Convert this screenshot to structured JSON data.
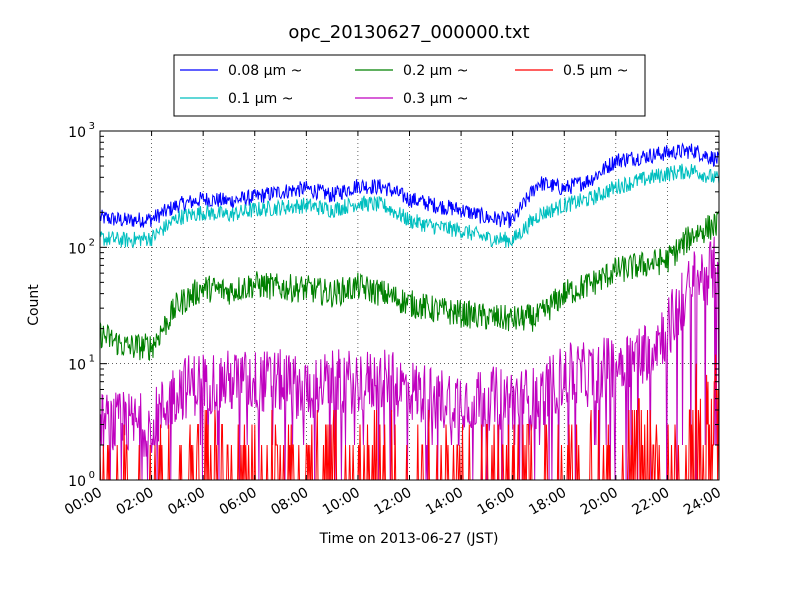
{
  "chart_data": {
    "type": "line",
    "title": "opc_20130627_000000.txt",
    "xlabel": "Time on 2013-06-27 (JST)",
    "ylabel": "Count",
    "yscale": "log",
    "ylim": [
      1,
      1000
    ],
    "xlim": [
      "00:00",
      "24:00"
    ],
    "x_ticks": [
      "00:00",
      "02:00",
      "04:00",
      "06:00",
      "08:00",
      "10:00",
      "12:00",
      "14:00",
      "16:00",
      "18:00",
      "20:00",
      "22:00",
      "24:00"
    ],
    "y_ticks": [
      {
        "value": 1,
        "base": "10",
        "exp": "0"
      },
      {
        "value": 10,
        "base": "10",
        "exp": "1"
      },
      {
        "value": 100,
        "base": "10",
        "exp": "2"
      },
      {
        "value": 1000,
        "base": "10",
        "exp": "3"
      }
    ],
    "grid": true,
    "legend_position": "above plot",
    "x_hours": [
      0,
      1,
      2,
      3,
      4,
      5,
      6,
      7,
      8,
      9,
      10,
      11,
      12,
      13,
      14,
      15,
      16,
      17,
      18,
      19,
      20,
      21,
      22,
      23,
      24
    ],
    "series": [
      {
        "name": "0.08 μm ~",
        "color": "#0000ff",
        "values": [
          180,
          170,
          175,
          230,
          260,
          250,
          270,
          300,
          320,
          280,
          340,
          330,
          260,
          230,
          210,
          180,
          170,
          360,
          320,
          380,
          560,
          600,
          650,
          680,
          560
        ]
      },
      {
        "name": "0.1 μm ~",
        "color": "#00bfbf",
        "values": [
          120,
          115,
          120,
          180,
          200,
          190,
          210,
          220,
          230,
          210,
          240,
          230,
          170,
          150,
          140,
          120,
          115,
          190,
          230,
          260,
          330,
          380,
          430,
          460,
          380
        ]
      },
      {
        "name": "0.2 μm ~",
        "color": "#008000",
        "values": [
          18,
          14,
          14,
          32,
          45,
          42,
          48,
          45,
          44,
          40,
          46,
          40,
          33,
          29,
          27,
          25,
          24,
          25,
          40,
          48,
          63,
          70,
          78,
          130,
          160
        ]
      },
      {
        "name": "0.3 μm ~",
        "color": "#bf00bf",
        "values": [
          3,
          3,
          3,
          6,
          7,
          7,
          7,
          7,
          6,
          7,
          7,
          7,
          6,
          5,
          5,
          5,
          5,
          5,
          8,
          8,
          10,
          12,
          20,
          50,
          70
        ]
      },
      {
        "name": "0.5 μm ~",
        "color": "#ff0000",
        "values": [
          1,
          1,
          1,
          1.3,
          1.5,
          1.5,
          1.5,
          1.5,
          1.5,
          1.5,
          1.5,
          1.5,
          1.4,
          1.3,
          1.3,
          1.3,
          1.3,
          1.3,
          1.4,
          1.6,
          1.8,
          2,
          2.5,
          5,
          5
        ]
      }
    ]
  }
}
